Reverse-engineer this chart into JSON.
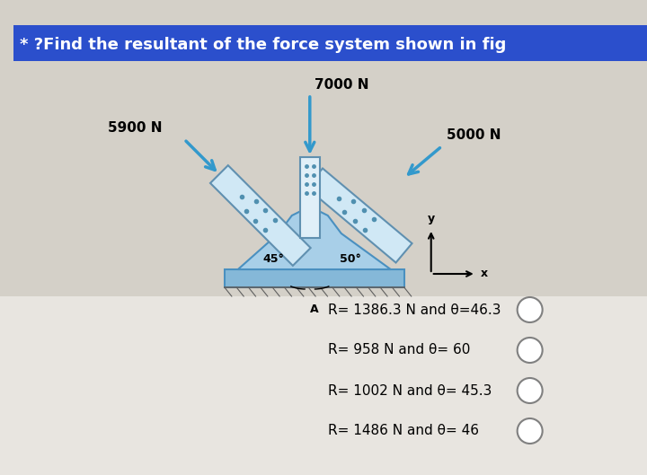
{
  "title": "* ?Find the resultant of the force system shown in fig",
  "title_bg": "#2b4fcc",
  "title_color": "white",
  "bg_color": "#c8c8c8",
  "bg_upper_color": "#d0cfc8",
  "force_labels": [
    "7000 N",
    "5000 N",
    "5900 N"
  ],
  "angle_labels": [
    "45°",
    "50°"
  ],
  "axis_labels": [
    "y",
    "x",
    "A"
  ],
  "options": [
    "R= 1386.3 N and θ=46.3",
    "R= 958 N and θ= 60",
    "R= 1002 N and θ= 45.3",
    "R= 1486 N and θ= 46"
  ],
  "body_color": "#a8cfe8",
  "body_color2": "#bcdcf0",
  "body_edge": "#4a90c0",
  "member_color": "#d0e8f5",
  "member_edge": "#6090b0",
  "arrow_color": "#3399cc",
  "base_color": "#85b8d8",
  "base_edge": "#4a90c0",
  "col_color": "#e0eff8",
  "col_edge": "#6090b0"
}
